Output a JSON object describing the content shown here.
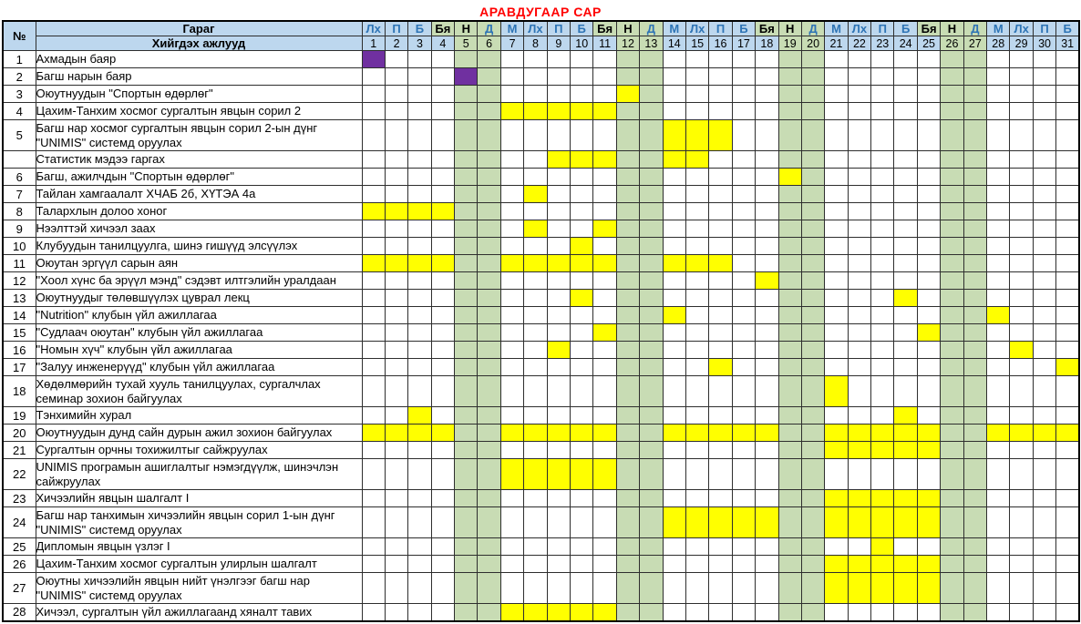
{
  "title": "АРАВДУГААР САР",
  "colors": {
    "title_red": "#FF0000",
    "header_blue": "#BDD7EE",
    "weekend_green": "#C8DCB4",
    "highlight_yellow": "#FFFF00",
    "holiday_purple": "#7030A0",
    "weekday_text_blue": "#2E74B5"
  },
  "table": {
    "corner_label": "№",
    "weekday_row_label": "Гараг",
    "tasks_row_label": "Хийгдэх ажлууд",
    "day_count": 31,
    "weekdays": [
      "Лх",
      "П",
      "Б",
      "Бя",
      "Н",
      "Д",
      "М",
      "Лх",
      "П",
      "Б",
      "Бя",
      "Н",
      "Д",
      "М",
      "Лх",
      "П",
      "Б",
      "Бя",
      "Н",
      "Д",
      "М",
      "Лх",
      "П",
      "Б",
      "Бя",
      "Н",
      "Д",
      "М",
      "Лх",
      "П",
      "Б"
    ],
    "black_text_weekdays": [
      "Бя",
      "Н"
    ],
    "weekday_green_days": [
      4,
      5,
      6,
      11,
      12,
      13,
      18,
      19,
      20,
      25,
      26,
      27
    ],
    "body_green_days": [
      5,
      6,
      12,
      13,
      19,
      20,
      26,
      27
    ]
  },
  "rows": [
    {
      "num": "1",
      "task": "Ахмадын баяр",
      "two_line": false,
      "yellow": [],
      "purple": [
        1
      ]
    },
    {
      "num": "2",
      "task": "Багш нарын баяр",
      "two_line": false,
      "yellow": [],
      "purple": [
        5
      ]
    },
    {
      "num": "3",
      "task": "Оюутнуудын \"Спортын өдөрлөг\"",
      "two_line": false,
      "yellow": [
        12
      ],
      "purple": []
    },
    {
      "num": "4",
      "task": "Цахим-Танхим хосмог сургалтын явцын сорил 2",
      "two_line": false,
      "yellow": [
        7,
        8,
        9,
        10,
        11
      ],
      "purple": []
    },
    {
      "num": "5",
      "task": "Багш нар хосмог сургалтын явцын сорил 2-ын дүнг \"UNIMIS\" системд оруулах",
      "two_line": true,
      "yellow": [
        14,
        15,
        16
      ],
      "purple": []
    },
    {
      "num": "",
      "task": "Статистик мэдээ гаргах",
      "two_line": false,
      "yellow": [
        9,
        10,
        11,
        14,
        15
      ],
      "purple": []
    },
    {
      "num": "6",
      "task": "Багш, ажилчдын  \"Спортын өдөрлөг\"",
      "two_line": false,
      "yellow": [
        19
      ],
      "purple": []
    },
    {
      "num": "7",
      "task": "Тайлан хамгаалалт ХЧАБ 2б, ХҮТЭА 4а",
      "two_line": false,
      "yellow": [
        8
      ],
      "purple": []
    },
    {
      "num": "8",
      "task": "Талархлын долоо хоног",
      "two_line": false,
      "yellow": [
        1,
        2,
        3,
        4
      ],
      "purple": []
    },
    {
      "num": "9",
      "task": "Нээлттэй хичээл заах",
      "two_line": false,
      "yellow": [
        8,
        11
      ],
      "purple": []
    },
    {
      "num": "10",
      "task": "Клубуудын танилцуулга, шинэ гишүүд элсүүлэх",
      "two_line": false,
      "yellow": [
        10
      ],
      "purple": []
    },
    {
      "num": "11",
      "task": "Оюутан эргүүл сарын аян",
      "two_line": false,
      "yellow": [
        1,
        2,
        3,
        4,
        7,
        8,
        9,
        10,
        11,
        14,
        15,
        16
      ],
      "purple": []
    },
    {
      "num": "12",
      "task": "\"Хоол хүнс ба эрүүл мэнд\" сэдэвт илтгэлийн уралдаан",
      "two_line": false,
      "yellow": [
        18
      ],
      "purple": []
    },
    {
      "num": "13",
      "task": "Оюутнуудыг төлөвшүүлэх цуврал лекц",
      "two_line": false,
      "yellow": [
        10,
        24
      ],
      "purple": []
    },
    {
      "num": "14",
      "task": "\"Nutrition\" клубын үйл ажиллагаа",
      "two_line": false,
      "yellow": [
        14,
        28
      ],
      "purple": []
    },
    {
      "num": "15",
      "task": "\"Судлаач оюутан\" клубын үйл ажиллагаа",
      "two_line": false,
      "yellow": [
        11,
        25
      ],
      "purple": []
    },
    {
      "num": "16",
      "task": "\"Номын хүч\" клубын үйл ажиллагаа",
      "two_line": false,
      "yellow": [
        9,
        29
      ],
      "purple": []
    },
    {
      "num": "17",
      "task": "\"Залуу инженерүүд\" клубын үйл ажиллагаа",
      "two_line": false,
      "yellow": [
        16,
        31
      ],
      "purple": []
    },
    {
      "num": "18",
      "task": "Хөдөлмөрийн тухай хууль танилцуулах, сургалчлах семинар  зохион байгуулах",
      "two_line": true,
      "yellow": [
        21
      ],
      "purple": []
    },
    {
      "num": "19",
      "task": "Тэнхимийн хурал",
      "two_line": false,
      "yellow": [
        3,
        24
      ],
      "purple": []
    },
    {
      "num": "20",
      "task": "Оюутнуудын дунд сайн дурын ажил зохион байгуулах",
      "two_line": false,
      "yellow": [
        1,
        2,
        3,
        4,
        7,
        8,
        9,
        10,
        11,
        14,
        15,
        16,
        17,
        18,
        21,
        22,
        23,
        24,
        25,
        28,
        29,
        30,
        31
      ],
      "purple": []
    },
    {
      "num": "21",
      "task": "Сургалтын орчны тохижилтыг сайжруулах",
      "two_line": false,
      "yellow": [
        21,
        22,
        23,
        24,
        25
      ],
      "purple": []
    },
    {
      "num": "22",
      "task": "UNIMIS програмын ашиглалтыг нэмэгдүүлж, шинэчлэн сайжруулах",
      "two_line": true,
      "yellow": [
        7,
        8,
        9,
        10,
        11
      ],
      "purple": []
    },
    {
      "num": "23",
      "task": "Хичээлийн явцын шалгалт I",
      "two_line": false,
      "yellow": [
        21,
        22,
        23,
        24,
        25
      ],
      "purple": []
    },
    {
      "num": "24",
      "task": "Багш нар танхимын хичээлийн явцын сорил 1-ын дүнг \"UNIMIS\" системд оруулах",
      "two_line": true,
      "yellow": [
        14,
        15,
        16,
        17,
        18,
        21,
        22,
        23,
        24,
        25
      ],
      "purple": []
    },
    {
      "num": "25",
      "task": "Дипломын явцын үзлэг I",
      "two_line": false,
      "yellow": [
        23
      ],
      "purple": []
    },
    {
      "num": "26",
      "task": "Цахим-Танхим хосмог сургалтын улирлын шалгалт",
      "two_line": false,
      "yellow": [
        21,
        22,
        23,
        24,
        25
      ],
      "purple": []
    },
    {
      "num": "27",
      "task": "Оюутны хичээлийн явцын нийт үнэлгээг багш нар \"UNIMIS\" системд оруулах",
      "two_line": true,
      "yellow": [
        21,
        22,
        23,
        24,
        25
      ],
      "purple": []
    },
    {
      "num": "28",
      "task": "Хичээл, сургалтын үйл ажиллагаанд хяналт тавих",
      "two_line": false,
      "yellow": [
        7,
        8,
        9,
        10,
        11
      ],
      "purple": []
    }
  ]
}
